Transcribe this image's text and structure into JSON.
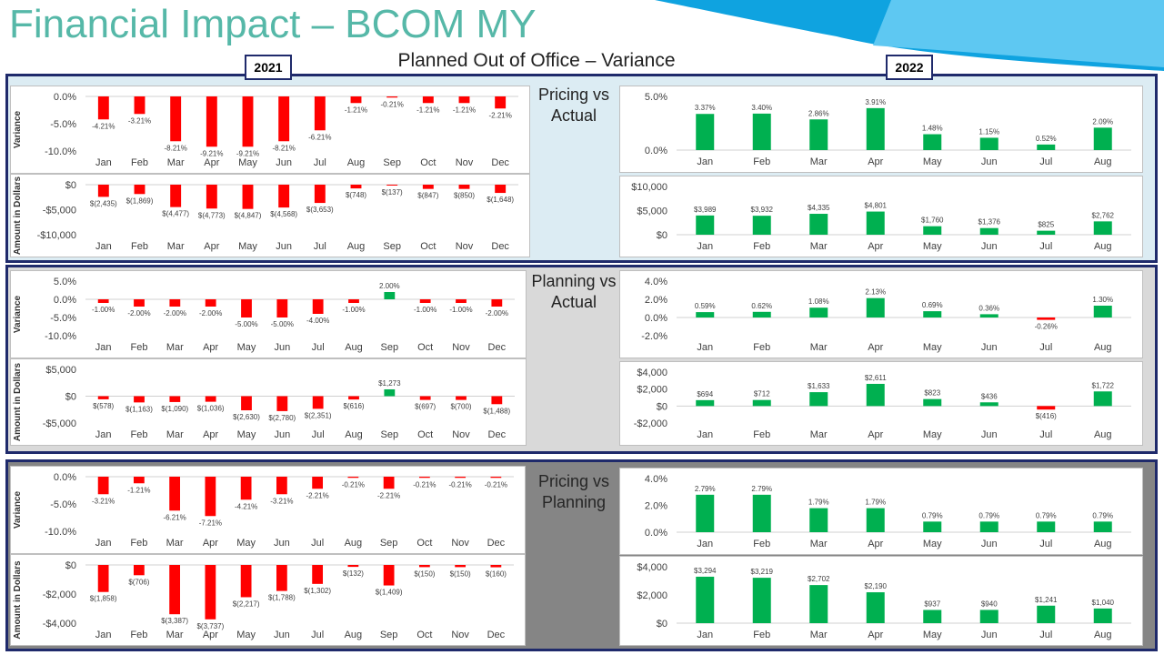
{
  "header": {
    "title": "Financial Impact – BCOM MY",
    "subtitle": "Planned Out of Office – Variance",
    "year_left": "2021",
    "year_right": "2022"
  },
  "colors": {
    "negative": "#ff0000",
    "positive": "#00b050",
    "title": "#56b8a8",
    "border": "#1f2a6b"
  },
  "sections": [
    {
      "label_line1": "Pricing vs",
      "label_line2": "Actual"
    },
    {
      "label_line1": "Planning vs",
      "label_line2": "Actual"
    },
    {
      "label_line1": "Pricing vs",
      "label_line2": "Planning"
    }
  ],
  "chart_data": [
    {
      "type": "bar",
      "ylabel": "Variance",
      "categories": [
        "Jan",
        "Feb",
        "Mar",
        "Apr",
        "May",
        "Jun",
        "Jul",
        "Aug",
        "Sep",
        "Oct",
        "Nov",
        "Dec"
      ],
      "values": [
        -4.21,
        -3.21,
        -8.21,
        -9.21,
        -9.21,
        -8.21,
        -6.21,
        -1.21,
        -0.21,
        -1.21,
        -1.21,
        -2.21
      ],
      "labels": [
        "-4.21%",
        "-3.21%",
        "-8.21%",
        "-9.21%",
        "-9.21%",
        "-8.21%",
        "-6.21%",
        "-1.21%",
        "-0.21%",
        "-1.21%",
        "-1.21%",
        "-2.21%"
      ],
      "ylim": [
        -10,
        0
      ],
      "ticks": [
        0,
        -5,
        -10
      ],
      "tick_labels": [
        "0.0%",
        "-5.0%",
        "-10.0%"
      ]
    },
    {
      "type": "bar",
      "ylabel": "Amount in Dollars",
      "categories": [
        "Jan",
        "Feb",
        "Mar",
        "Apr",
        "May",
        "Jun",
        "Jul",
        "Aug",
        "Sep",
        "Oct",
        "Nov",
        "Dec"
      ],
      "values": [
        -2435,
        -1869,
        -4477,
        -4773,
        -4847,
        -4568,
        -3653,
        -748,
        -137,
        -847,
        -850,
        -1648
      ],
      "labels": [
        "$(2,435)",
        "$(1,869)",
        "$(4,477)",
        "$(4,773)",
        "$(4,847)",
        "$(4,568)",
        "$(3,653)",
        "$(748)",
        "$(137)",
        "$(847)",
        "$(850)",
        "$(1,648)"
      ],
      "ylim": [
        -10000,
        0
      ],
      "ticks": [
        0,
        -5000,
        -10000
      ],
      "tick_labels": [
        "$0",
        "-$5,000",
        "-$10,000"
      ]
    },
    {
      "type": "bar",
      "categories": [
        "Jan",
        "Feb",
        "Mar",
        "Apr",
        "May",
        "Jun",
        "Jul",
        "Aug"
      ],
      "values": [
        3.37,
        3.4,
        2.86,
        3.91,
        1.48,
        1.15,
        0.52,
        2.09
      ],
      "labels": [
        "3.37%",
        "3.40%",
        "2.86%",
        "3.91%",
        "1.48%",
        "1.15%",
        "0.52%",
        "2.09%"
      ],
      "ylim": [
        0,
        5
      ],
      "ticks": [
        5,
        0
      ],
      "tick_labels": [
        "5.0%",
        "0.0%"
      ]
    },
    {
      "type": "bar",
      "categories": [
        "Jan",
        "Feb",
        "Mar",
        "Apr",
        "May",
        "Jun",
        "Jul",
        "Aug"
      ],
      "values": [
        3989,
        3932,
        4335,
        4801,
        1760,
        1376,
        825,
        2762
      ],
      "labels": [
        "$3,989",
        "$3,932",
        "$4,335",
        "$4,801",
        "$1,760",
        "$1,376",
        "$825",
        "$2,762"
      ],
      "ylim": [
        0,
        10000
      ],
      "ticks": [
        10000,
        5000,
        0
      ],
      "tick_labels": [
        "$10,000",
        "$5,000",
        "$0"
      ]
    },
    {
      "type": "bar",
      "ylabel": "Variance",
      "categories": [
        "Jan",
        "Feb",
        "Mar",
        "Apr",
        "May",
        "Jun",
        "Jul",
        "Aug",
        "Sep",
        "Oct",
        "Nov",
        "Dec"
      ],
      "values": [
        -1,
        -2,
        -2,
        -2,
        -5,
        -5,
        -4,
        -1,
        2,
        -1,
        -1,
        -2
      ],
      "labels": [
        "-1.00%",
        "-2.00%",
        "-2.00%",
        "-2.00%",
        "-5.00%",
        "-5.00%",
        "-4.00%",
        "-1.00%",
        "2.00%",
        "-1.00%",
        "-1.00%",
        "-2.00%"
      ],
      "ylim": [
        -10,
        5
      ],
      "ticks": [
        5,
        0,
        -5,
        -10
      ],
      "tick_labels": [
        "5.0%",
        "0.0%",
        "-5.0%",
        "-10.0%"
      ]
    },
    {
      "type": "bar",
      "ylabel": "Amount in Dollars",
      "categories": [
        "Jan",
        "Feb",
        "Mar",
        "Apr",
        "May",
        "Jun",
        "Jul",
        "Aug",
        "Sep",
        "Oct",
        "Nov",
        "Dec"
      ],
      "values": [
        -578,
        -1163,
        -1090,
        -1036,
        -2630,
        -2780,
        -2351,
        -616,
        1273,
        -697,
        -700,
        -1488
      ],
      "labels": [
        "$(578)",
        "$(1,163)",
        "$(1,090)",
        "$(1,036)",
        "$(2,630)",
        "$(2,780)",
        "$(2,351)",
        "$(616)",
        "$1,273",
        "$(697)",
        "$(700)",
        "$(1,488)"
      ],
      "ylim": [
        -5000,
        5000
      ],
      "ticks": [
        5000,
        0,
        -5000
      ],
      "tick_labels": [
        "$5,000",
        "$0",
        "-$5,000"
      ]
    },
    {
      "type": "bar",
      "categories": [
        "Jan",
        "Feb",
        "Mar",
        "Apr",
        "May",
        "Jun",
        "Jul",
        "Aug"
      ],
      "values": [
        0.59,
        0.62,
        1.08,
        2.13,
        0.69,
        0.36,
        -0.26,
        1.3
      ],
      "labels": [
        "0.59%",
        "0.62%",
        "1.08%",
        "2.13%",
        "0.69%",
        "0.36%",
        "-0.26%",
        "1.30%"
      ],
      "ylim": [
        -2,
        4
      ],
      "ticks": [
        4,
        2,
        0,
        -2
      ],
      "tick_labels": [
        "4.0%",
        "2.0%",
        "0.0%",
        "-2.0%"
      ]
    },
    {
      "type": "bar",
      "categories": [
        "Jan",
        "Feb",
        "Mar",
        "Apr",
        "May",
        "Jun",
        "Jul",
        "Aug"
      ],
      "values": [
        694,
        712,
        1633,
        2611,
        823,
        436,
        -416,
        1722
      ],
      "labels": [
        "$694",
        "$712",
        "$1,633",
        "$2,611",
        "$823",
        "$436",
        "$(416)",
        "$1,722"
      ],
      "ylim": [
        -2000,
        4000
      ],
      "ticks": [
        4000,
        2000,
        0,
        -2000
      ],
      "tick_labels": [
        "$4,000",
        "$2,000",
        "$0",
        "-$2,000"
      ]
    },
    {
      "type": "bar",
      "ylabel": "Variance",
      "categories": [
        "Jan",
        "Feb",
        "Mar",
        "Apr",
        "May",
        "Jun",
        "Jul",
        "Aug",
        "Sep",
        "Oct",
        "Nov",
        "Dec"
      ],
      "values": [
        -3.21,
        -1.21,
        -6.21,
        -7.21,
        -4.21,
        -3.21,
        -2.21,
        -0.21,
        -2.21,
        -0.21,
        -0.21,
        -0.21
      ],
      "labels": [
        "-3.21%",
        "-1.21%",
        "-6.21%",
        "-7.21%",
        "-4.21%",
        "-3.21%",
        "-2.21%",
        "-0.21%",
        "-2.21%",
        "-0.21%",
        "-0.21%",
        "-0.21%"
      ],
      "ylim": [
        -10,
        0
      ],
      "ticks": [
        0,
        -5,
        -10
      ],
      "tick_labels": [
        "0.0%",
        "-5.0%",
        "-10.0%"
      ]
    },
    {
      "type": "bar",
      "ylabel": "Amount in Dollars",
      "categories": [
        "Jan",
        "Feb",
        "Mar",
        "Apr",
        "May",
        "Jun",
        "Jul",
        "Aug",
        "Sep",
        "Oct",
        "Nov",
        "Dec"
      ],
      "values": [
        -1858,
        -706,
        -3387,
        -3737,
        -2217,
        -1788,
        -1302,
        -132,
        -1409,
        -150,
        -150,
        -160
      ],
      "labels": [
        "$(1,858)",
        "$(706)",
        "$(3,387)",
        "$(3,737)",
        "$(2,217)",
        "$(1,788)",
        "$(1,302)",
        "$(132)",
        "$(1,409)",
        "$(150)",
        "$(150)",
        "$(160)"
      ],
      "ylim": [
        -4000,
        0
      ],
      "ticks": [
        0,
        -2000,
        -4000
      ],
      "tick_labels": [
        "$0",
        "-$2,000",
        "-$4,000"
      ]
    },
    {
      "type": "bar",
      "categories": [
        "Jan",
        "Feb",
        "Mar",
        "Apr",
        "May",
        "Jun",
        "Jul",
        "Aug"
      ],
      "values": [
        2.79,
        2.79,
        1.79,
        1.79,
        0.79,
        0.79,
        0.79,
        0.79
      ],
      "labels": [
        "2.79%",
        "2.79%",
        "1.79%",
        "1.79%",
        "0.79%",
        "0.79%",
        "0.79%",
        "0.79%"
      ],
      "ylim": [
        0,
        4
      ],
      "ticks": [
        4,
        2,
        0
      ],
      "tick_labels": [
        "4.0%",
        "2.0%",
        "0.0%"
      ]
    },
    {
      "type": "bar",
      "categories": [
        "Jan",
        "Feb",
        "Mar",
        "Apr",
        "May",
        "Jun",
        "Jul",
        "Aug"
      ],
      "values": [
        3294,
        3219,
        2702,
        2190,
        937,
        940,
        1241,
        1040
      ],
      "labels": [
        "$3,294",
        "$3,219",
        "$2,702",
        "$2,190",
        "$937",
        "$940",
        "$1,241",
        "$1,040"
      ],
      "ylim": [
        0,
        4000
      ],
      "ticks": [
        4000,
        2000,
        0
      ],
      "tick_labels": [
        "$4,000",
        "$2,000",
        "$0"
      ]
    }
  ]
}
